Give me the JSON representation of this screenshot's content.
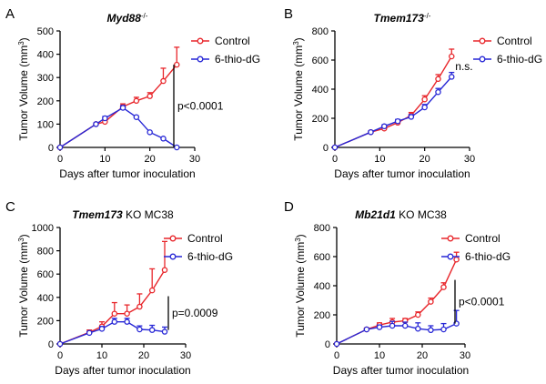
{
  "chart_data": [
    {
      "type": "line",
      "panel_label": "A",
      "title_gene": "Myd88",
      "title_sup": "-/-",
      "title_rest": "",
      "xlabel": "Days after tumor inoculation",
      "ylabel_main": "Tumor Volume (mm",
      "ylabel_sup": "3",
      "ylabel_end": ")",
      "xlim": [
        0,
        30
      ],
      "ylim": [
        0,
        500
      ],
      "xticks": [
        0,
        10,
        20,
        30
      ],
      "yticks": [
        0,
        100,
        200,
        300,
        400,
        500
      ],
      "legend": [
        "Control",
        "6-thio-dG"
      ],
      "series": [
        {
          "name": "Control",
          "color": "#e8262b",
          "x": [
            0,
            8,
            10,
            14,
            17,
            20,
            23,
            26
          ],
          "y": [
            0,
            100,
            110,
            175,
            200,
            220,
            285,
            355
          ],
          "err": [
            0,
            5,
            10,
            12,
            15,
            15,
            55,
            75
          ]
        },
        {
          "name": "6-thio-dG",
          "color": "#2727d6",
          "x": [
            0,
            8,
            10,
            14,
            17,
            20,
            23,
            26
          ],
          "y": [
            0,
            100,
            125,
            170,
            130,
            65,
            38,
            0
          ],
          "err": [
            0,
            5,
            8,
            10,
            0,
            0,
            0,
            0
          ]
        }
      ],
      "annotation": "p<0.0001",
      "bracket_y": [
        0,
        355
      ]
    },
    {
      "type": "line",
      "panel_label": "B",
      "title_gene": "Tmem173",
      "title_sup": "-/-",
      "title_rest": "",
      "xlabel": "Days after tumor inoculation",
      "ylabel_main": "Tumor Volume (mm",
      "ylabel_sup": "3",
      "ylabel_end": ")",
      "xlim": [
        0,
        30
      ],
      "ylim": [
        0,
        800
      ],
      "xticks": [
        0,
        10,
        20,
        30
      ],
      "yticks": [
        0,
        200,
        400,
        600,
        800
      ],
      "legend": [
        "Control",
        "6-thio-dG"
      ],
      "series": [
        {
          "name": "Control",
          "color": "#e8262b",
          "x": [
            0,
            8,
            11,
            14,
            17,
            20,
            23,
            26
          ],
          "y": [
            0,
            105,
            130,
            170,
            220,
            330,
            470,
            625
          ],
          "err": [
            0,
            8,
            10,
            15,
            20,
            25,
            30,
            50
          ]
        },
        {
          "name": "6-thio-dG",
          "color": "#2727d6",
          "x": [
            0,
            8,
            11,
            14,
            17,
            20,
            23,
            26
          ],
          "y": [
            0,
            105,
            145,
            180,
            210,
            275,
            380,
            485
          ],
          "err": [
            0,
            8,
            10,
            12,
            15,
            20,
            25,
            30
          ]
        }
      ],
      "annotation": "n.s.",
      "bracket_y": null
    },
    {
      "type": "line",
      "panel_label": "C",
      "title_gene": "Tmem173",
      "title_sup": "",
      "title_rest": " KO MC38",
      "xlabel": "Days after tumor inoculation",
      "ylabel_main": "Tumor Volume (mm",
      "ylabel_sup": "3",
      "ylabel_end": ")",
      "xlim": [
        0,
        30
      ],
      "ylim": [
        0,
        1000
      ],
      "xticks": [
        0,
        10,
        20,
        30
      ],
      "yticks": [
        0,
        200,
        400,
        600,
        800,
        1000
      ],
      "legend": [
        "Control",
        "6-thio-dG"
      ],
      "series": [
        {
          "name": "Control",
          "color": "#e8262b",
          "x": [
            0,
            7,
            10,
            13,
            16,
            19,
            22,
            25
          ],
          "y": [
            0,
            100,
            150,
            260,
            260,
            320,
            460,
            635
          ],
          "err": [
            0,
            20,
            40,
            95,
            75,
            110,
            185,
            245
          ]
        },
        {
          "name": "6-thio-dG",
          "color": "#2727d6",
          "x": [
            0,
            7,
            10,
            13,
            16,
            19,
            22,
            25
          ],
          "y": [
            0,
            95,
            130,
            190,
            190,
            125,
            120,
            105
          ],
          "err": [
            0,
            10,
            20,
            30,
            30,
            30,
            40,
            40
          ]
        }
      ],
      "annotation": "p=0.0009",
      "bracket_y": [
        120,
        410
      ]
    },
    {
      "type": "line",
      "panel_label": "D",
      "title_gene": "Mb21d1",
      "title_sup": "",
      "title_rest": " KO MC38",
      "xlabel": "Days after tumor inoculation",
      "ylabel_main": "Tumor Volume (mm",
      "ylabel_sup": "3",
      "ylabel_end": ")",
      "xlim": [
        0,
        30
      ],
      "ylim": [
        0,
        800
      ],
      "xticks": [
        0,
        10,
        20,
        30
      ],
      "yticks": [
        0,
        200,
        400,
        600,
        800
      ],
      "legend": [
        "Control",
        "6-thio-dG"
      ],
      "series": [
        {
          "name": "Control",
          "color": "#e8262b",
          "x": [
            0,
            7,
            10,
            13,
            16,
            19,
            22,
            25,
            28
          ],
          "y": [
            0,
            100,
            130,
            150,
            160,
            200,
            290,
            390,
            580
          ],
          "err": [
            0,
            10,
            15,
            25,
            15,
            20,
            25,
            30,
            50
          ]
        },
        {
          "name": "6-thio-dG",
          "color": "#2727d6",
          "x": [
            0,
            7,
            10,
            13,
            16,
            19,
            22,
            25,
            28
          ],
          "y": [
            0,
            100,
            115,
            125,
            125,
            105,
            95,
            100,
            140
          ],
          "err": [
            0,
            5,
            15,
            30,
            25,
            40,
            30,
            40,
            90
          ]
        }
      ],
      "annotation": "p<0.0001",
      "bracket_y": [
        140,
        440
      ]
    }
  ]
}
